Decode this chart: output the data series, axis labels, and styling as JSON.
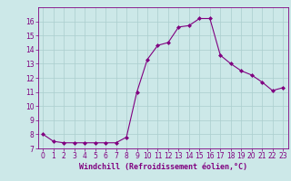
{
  "x": [
    0,
    1,
    2,
    3,
    4,
    5,
    6,
    7,
    8,
    9,
    10,
    11,
    12,
    13,
    14,
    15,
    16,
    17,
    18,
    19,
    20,
    21,
    22,
    23
  ],
  "y": [
    8.0,
    7.5,
    7.4,
    7.4,
    7.4,
    7.4,
    7.4,
    7.4,
    7.8,
    11.0,
    13.3,
    14.3,
    14.5,
    15.6,
    15.7,
    16.2,
    16.2,
    13.6,
    13.0,
    12.5,
    12.2,
    11.7,
    11.1,
    11.3
  ],
  "line_color": "#800080",
  "marker": "D",
  "marker_size": 2.0,
  "bg_color": "#cce8e8",
  "grid_color": "#aacece",
  "xlabel": "Windchill (Refroidissement éolien,°C)",
  "tick_color": "#800080",
  "xlim": [
    -0.5,
    23.5
  ],
  "ylim": [
    7,
    17
  ],
  "yticks": [
    7,
    8,
    9,
    10,
    11,
    12,
    13,
    14,
    15,
    16
  ],
  "xticks": [
    0,
    1,
    2,
    3,
    4,
    5,
    6,
    7,
    8,
    9,
    10,
    11,
    12,
    13,
    14,
    15,
    16,
    17,
    18,
    19,
    20,
    21,
    22,
    23
  ],
  "spine_color": "#800080",
  "tick_fontsize": 5.5,
  "xlabel_fontsize": 6.0
}
